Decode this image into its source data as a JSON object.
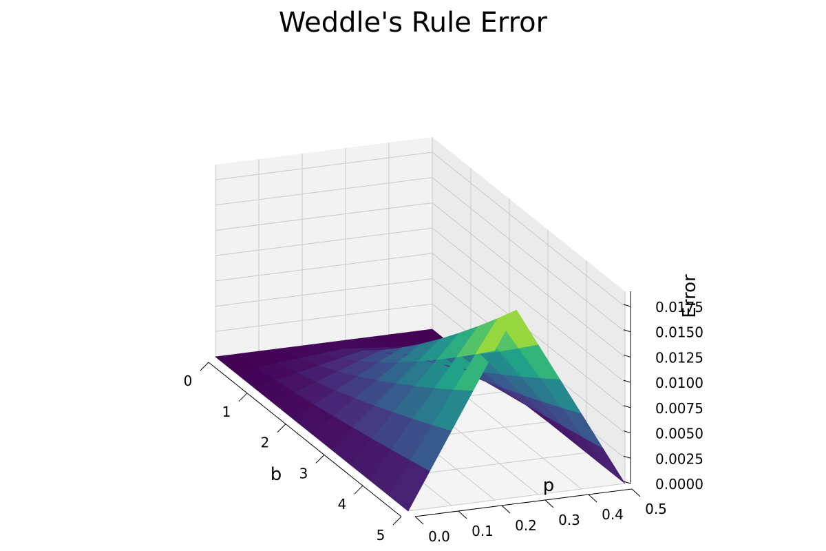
{
  "chart_data": {
    "type": "surface-3d",
    "title": "Weddle's Rule Error",
    "xlabel": "b",
    "ylabel": "p",
    "zlabel": "Error",
    "x_ticks": [
      "0",
      "1",
      "2",
      "3",
      "4",
      "5"
    ],
    "y_ticks": [
      "0.0",
      "0.1",
      "0.2",
      "0.3",
      "0.4",
      "0.5"
    ],
    "z_ticks": [
      "0.0000",
      "0.0025",
      "0.0050",
      "0.0075",
      "0.0100",
      "0.0125",
      "0.0150",
      "0.0175"
    ],
    "xlim": [
      0,
      5
    ],
    "ylim": [
      0,
      0.5
    ],
    "zlim": [
      0,
      0.019
    ],
    "colormap": "viridis",
    "grid": true,
    "surface_samples": {
      "b": [
        0,
        0.5,
        1,
        1.5,
        2,
        2.5,
        3,
        3.5,
        4,
        4.5,
        5
      ],
      "p": [
        0,
        0.05,
        0.1,
        0.15,
        0.2,
        0.25,
        0.3,
        0.35,
        0.4,
        0.45,
        0.5
      ],
      "error_peak": 0.0185,
      "error_ridge_at_p": 0.25
    }
  }
}
